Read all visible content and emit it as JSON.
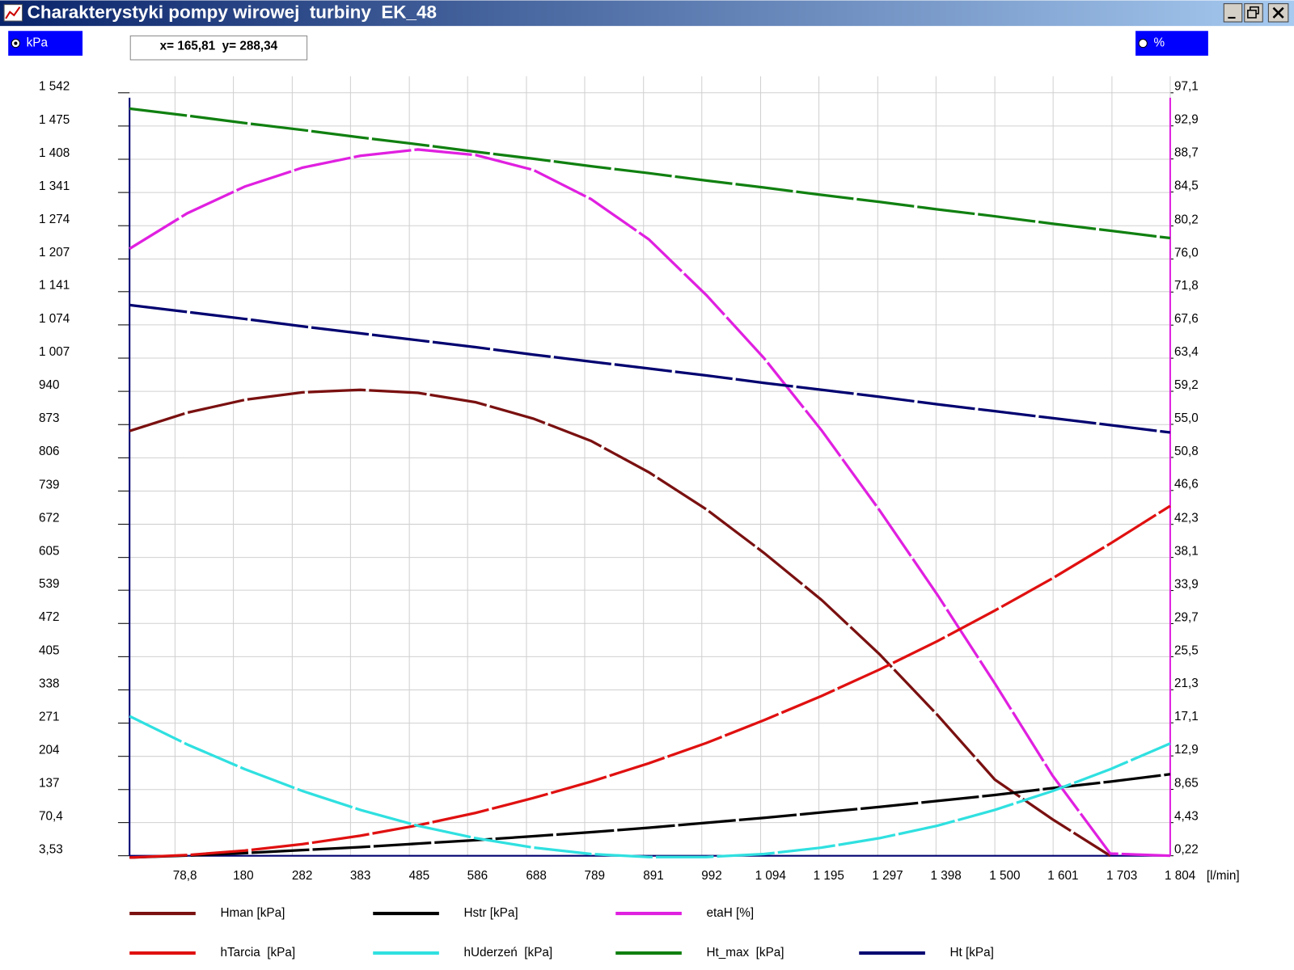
{
  "window": {
    "title": "Charakterystyki pompy wirowej  turbiny  EK_48"
  },
  "left_unit": "kPa",
  "right_unit": "%",
  "cursor_readout": "x= 165,81  y= 288,34",
  "chart_data": {
    "type": "line",
    "x": [
      0,
      100,
      200,
      300,
      400,
      500,
      600,
      700,
      800,
      900,
      1000,
      1100,
      1200,
      1300,
      1400,
      1500,
      1600,
      1700,
      1804
    ],
    "series": [
      {
        "name": "Hman [kPa]",
        "color": "#7a1010",
        "values": [
          860,
          897,
          923,
          938,
          943,
          937,
          918,
          885,
          840,
          777,
          702,
          614,
          519,
          410,
          288,
          157,
          77,
          3.5,
          null
        ]
      },
      {
        "name": "Hstr [kPa]",
        "color": "#000000",
        "values": [
          0,
          4,
          9,
          15,
          21,
          28,
          35,
          43,
          51,
          60,
          70,
          80,
          91,
          102,
          114,
          126,
          140,
          153,
          168
        ]
      },
      {
        "name": "etaH [%]",
        "color": "#e020e0",
        "axis": "y2",
        "values": [
          77.3,
          81.8,
          85.2,
          87.6,
          89.1,
          89.9,
          89.2,
          87.3,
          83.6,
          78.5,
          71.4,
          63.4,
          54.2,
          44.1,
          33.4,
          22.1,
          10.4,
          0.5,
          0.22
        ]
      },
      {
        "name": "hTarcia  [kPa]",
        "color": "#e01010",
        "values": [
          0,
          5,
          14,
          27,
          44,
          65,
          90,
          120,
          153,
          190,
          231,
          277,
          326,
          379,
          436,
          498,
          563,
          633,
          709
        ]
      },
      {
        "name": "hUderzeń  [kPa]",
        "color": "#30e0e0",
        "values": [
          285,
          228,
          178,
          134,
          96,
          64,
          39,
          20,
          7,
          1,
          1,
          7,
          20,
          39,
          64,
          96,
          134,
          178,
          230
        ]
      },
      {
        "name": "Ht_max  [kPa]",
        "color": "#108010",
        "values": [
          1510,
          1496,
          1481,
          1467,
          1452,
          1438,
          1423,
          1409,
          1394,
          1380,
          1365,
          1351,
          1336,
          1322,
          1307,
          1293,
          1278,
          1264,
          1249
        ]
      },
      {
        "name": "Ht [kPa]",
        "color": "#000070",
        "values": [
          1114,
          1100,
          1086,
          1071,
          1057,
          1043,
          1029,
          1014,
          1000,
          986,
          972,
          957,
          943,
          929,
          914,
          900,
          886,
          872,
          857
        ]
      }
    ],
    "xlabel": "[l/min]",
    "xlim": [
      0,
      1804
    ],
    "ylim": [
      3.53,
      1542
    ],
    "y2lim": [
      0.22,
      97.1
    ],
    "grid": true,
    "xticks": [
      {
        "value": 78.8,
        "label": "78,8"
      },
      180,
      282,
      383,
      485,
      586,
      688,
      789,
      891,
      992,
      {
        "value": 1094,
        "label": "1 094"
      },
      {
        "value": 1195,
        "label": "1 195"
      },
      {
        "value": 1297,
        "label": "1 297"
      },
      {
        "value": 1398,
        "label": "1 398"
      },
      {
        "value": 1500,
        "label": "1 500"
      },
      {
        "value": 1601,
        "label": "1 601"
      },
      {
        "value": 1703,
        "label": "1 703"
      },
      {
        "value": 1804,
        "label": "1 804"
      }
    ],
    "yticks": [
      {
        "value": 1542,
        "label": "1 542"
      },
      {
        "value": 1475,
        "label": "1 475"
      },
      {
        "value": 1408,
        "label": "1 408"
      },
      {
        "value": 1341,
        "label": "1 341"
      },
      {
        "value": 1274,
        "label": "1 274"
      },
      {
        "value": 1207,
        "label": "1 207"
      },
      {
        "value": 1141,
        "label": "1 141"
      },
      {
        "value": 1074,
        "label": "1 074"
      },
      {
        "value": 1007,
        "label": "1 007"
      },
      940,
      873,
      806,
      739,
      672,
      605,
      539,
      472,
      405,
      338,
      271,
      204,
      137,
      {
        "value": 70.4,
        "label": "70,4"
      },
      {
        "value": 3.53,
        "label": "3,53"
      }
    ],
    "y2ticks": [
      {
        "value": 97.1,
        "label": "97,1"
      },
      {
        "value": 92.9,
        "label": "92,9"
      },
      {
        "value": 88.7,
        "label": "88,7"
      },
      {
        "value": 84.5,
        "label": "84,5"
      },
      {
        "value": 80.2,
        "label": "80,2"
      },
      {
        "value": 76.0,
        "label": "76,0"
      },
      {
        "value": 71.8,
        "label": "71,8"
      },
      {
        "value": 67.6,
        "label": "67,6"
      },
      {
        "value": 63.4,
        "label": "63,4"
      },
      {
        "value": 59.2,
        "label": "59,2"
      },
      {
        "value": 55.0,
        "label": "55,0"
      },
      {
        "value": 50.8,
        "label": "50,8"
      },
      {
        "value": 46.6,
        "label": "46,6"
      },
      {
        "value": 42.3,
        "label": "42,3"
      },
      {
        "value": 38.1,
        "label": "38,1"
      },
      {
        "value": 33.9,
        "label": "33,9"
      },
      {
        "value": 29.7,
        "label": "29,7"
      },
      {
        "value": 25.5,
        "label": "25,5"
      },
      {
        "value": 21.3,
        "label": "21,3"
      },
      {
        "value": 17.1,
        "label": "17,1"
      },
      {
        "value": 12.9,
        "label": "12,9"
      },
      {
        "value": 8.65,
        "label": "8,65"
      },
      {
        "value": 4.43,
        "label": "4,43"
      },
      {
        "value": 0.22,
        "label": "0,22"
      }
    ]
  }
}
